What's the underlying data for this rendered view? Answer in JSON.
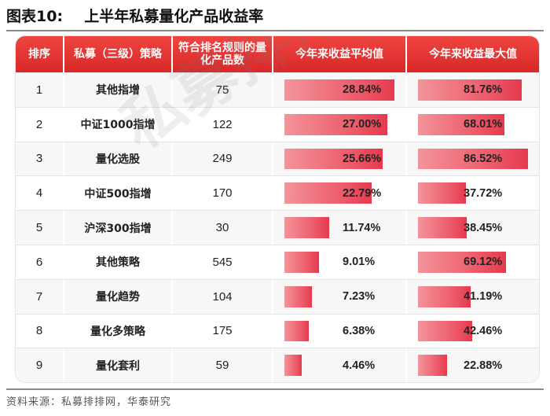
{
  "figure": {
    "label": "图表10:",
    "title": "上半年私募量化产品收益率"
  },
  "table": {
    "headers": [
      "排序",
      "私募（三级）策略",
      "符合排名规则的量化产品数",
      "今年来收益平均值",
      "今年来收益最大值"
    ],
    "rows": [
      {
        "rank": "1",
        "strategy": "其他指增",
        "count": "75",
        "avg": "28.84%",
        "max": "81.76%"
      },
      {
        "rank": "2",
        "strategy": "中证1000指增",
        "count": "122",
        "avg": "27.00%",
        "max": "68.01%"
      },
      {
        "rank": "3",
        "strategy": "量化选股",
        "count": "249",
        "avg": "25.66%",
        "max": "86.52%"
      },
      {
        "rank": "4",
        "strategy": "中证500指增",
        "count": "170",
        "avg": "22.79%",
        "max": "37.72%"
      },
      {
        "rank": "5",
        "strategy": "沪深300指增",
        "count": "30",
        "avg": "11.74%",
        "max": "38.45%"
      },
      {
        "rank": "6",
        "strategy": "其他策略",
        "count": "545",
        "avg": "9.01%",
        "max": "69.12%"
      },
      {
        "rank": "7",
        "strategy": "量化趋势",
        "count": "104",
        "avg": "7.23%",
        "max": "41.19%"
      },
      {
        "rank": "8",
        "strategy": "量化多策略",
        "count": "175",
        "avg": "6.38%",
        "max": "42.46%"
      },
      {
        "rank": "9",
        "strategy": "量化套利",
        "count": "59",
        "avg": "4.46%",
        "max": "22.88%"
      }
    ]
  },
  "watermark": "私募排排网",
  "source": "资料来源：私募排排网，华泰研究"
}
